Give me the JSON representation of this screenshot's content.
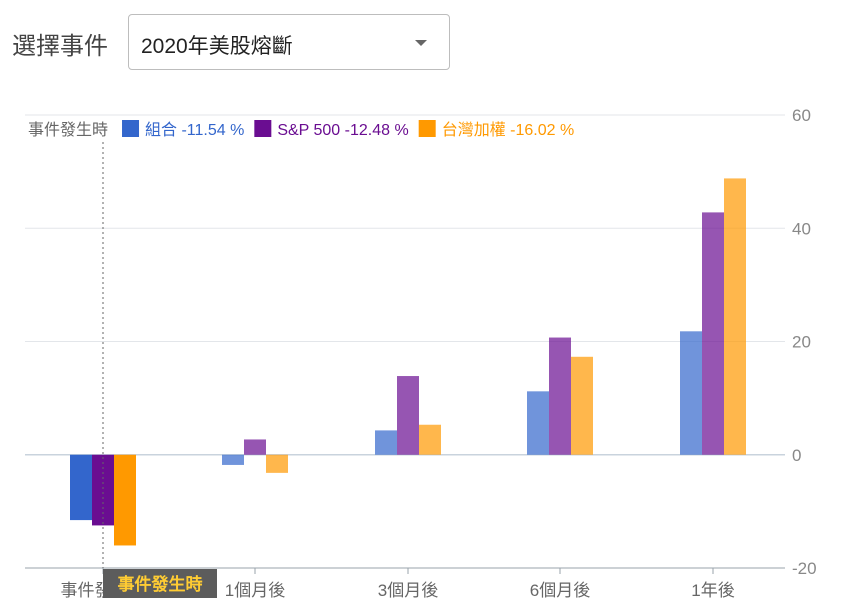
{
  "selector": {
    "label": "選擇事件",
    "value": "2020年美股熔斷"
  },
  "legend": {
    "cursor_label": "事件發生時",
    "items": [
      {
        "name": "組合",
        "value_text": "-11.54 %",
        "color": "#3366cc"
      },
      {
        "name": "S&P 500",
        "value_text": "-12.48 %",
        "color": "#6a0d91"
      },
      {
        "name": "台灣加權",
        "value_text": "-16.02 %",
        "color": "#ff9900"
      }
    ]
  },
  "cursor_tooltip": "事件發生時",
  "chart_data": {
    "type": "bar",
    "categories": [
      "事件發生時",
      "1個月後",
      "3個月後",
      "6個月後",
      "1年後"
    ],
    "series": [
      {
        "name": "組合",
        "color": "#3366cc",
        "values": [
          -11.54,
          -1.8,
          4.3,
          11.2,
          21.8
        ]
      },
      {
        "name": "S&P 500",
        "color": "#6a0d91",
        "values": [
          -12.48,
          2.7,
          13.9,
          20.7,
          42.8
        ]
      },
      {
        "name": "台灣加權",
        "color": "#ff9900",
        "values": [
          -16.02,
          -3.2,
          5.3,
          17.3,
          48.8
        ]
      }
    ],
    "ylim": [
      -20,
      60
    ],
    "yticks": [
      60,
      40,
      20,
      0,
      -20
    ],
    "axis_side": "right",
    "grid": true,
    "legend_position": "top-left"
  }
}
